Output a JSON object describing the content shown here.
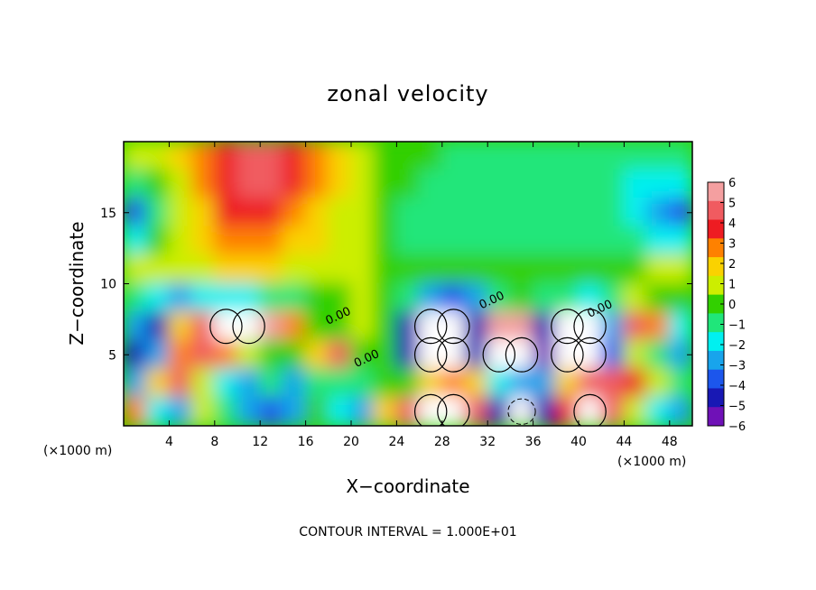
{
  "chart_data": {
    "type": "heatmap",
    "title": "zonal velocity",
    "xlabel": "X−coordinate",
    "ylabel": "Z−coordinate",
    "x_unit_label_left": "(×1000 m)",
    "x_unit_label_right": "(×1000 m)",
    "note": "CONTOUR INTERVAL = 1.000E+01",
    "xlim": [
      0,
      50
    ],
    "ylim": [
      0,
      20
    ],
    "x_ticks": [
      4,
      8,
      12,
      16,
      20,
      24,
      28,
      32,
      36,
      40,
      44,
      48
    ],
    "x_tick_labels": [
      "4",
      "8",
      "12",
      "16",
      "20",
      "24",
      "28",
      "32",
      "36",
      "40",
      "44",
      "48"
    ],
    "y_ticks": [
      5,
      10,
      15
    ],
    "y_tick_labels": [
      "5",
      "10",
      "15"
    ],
    "colorbar": {
      "min": -6,
      "max": 6,
      "tick_labels": [
        "6",
        "5",
        "4",
        "3",
        "2",
        "1",
        "0",
        "−1",
        "−2",
        "−3",
        "−4",
        "−5",
        "−6"
      ],
      "colors": [
        "#f49fa0",
        "#f05b60",
        "#ee1c22",
        "#fe8100",
        "#fad200",
        "#ccee00",
        "#32d000",
        "#20e67a",
        "#00f0f0",
        "#18a4ec",
        "#1c56ec",
        "#1818b4",
        "#6f11b7"
      ]
    },
    "contour_labels": [
      {
        "text": "0.00",
        "x": 19,
        "y": 7.5
      },
      {
        "text": "0.00",
        "x": 21.5,
        "y": 4.5
      },
      {
        "text": "0.00",
        "x": 32.5,
        "y": 8.6
      },
      {
        "text": "0.00",
        "x": 42,
        "y": 8.0
      }
    ],
    "cells_note": "white = above +6 (or below −6); values are zonal velocity in m/s",
    "grid_x": [
      1,
      3,
      5,
      7,
      9,
      11,
      13,
      15,
      17,
      19,
      21,
      23,
      25,
      27,
      29,
      31,
      33,
      35,
      37,
      39,
      41,
      43,
      45,
      47,
      49
    ],
    "grid_y": [
      19,
      17,
      15,
      13,
      11,
      9,
      7,
      5,
      3,
      1
    ],
    "values": [
      [
        1,
        1,
        2,
        3,
        4,
        5,
        5,
        4,
        3,
        2,
        1,
        0,
        0,
        0,
        -1,
        -1,
        -1,
        -1,
        -1,
        -1,
        -1,
        -1,
        -1,
        -1,
        -1
      ],
      [
        -1,
        0,
        1,
        3,
        4,
        5,
        5,
        4,
        3,
        2,
        1,
        0,
        0,
        -1,
        -1,
        -1,
        -1,
        -1,
        -1,
        -1,
        -1,
        -1,
        -2,
        -2,
        -2
      ],
      [
        -4,
        -1,
        1,
        2,
        4,
        4,
        4,
        3,
        2,
        1,
        1,
        0,
        -1,
        -1,
        -1,
        -1,
        -1,
        -1,
        -1,
        -1,
        -1,
        -1,
        -2,
        -3,
        -4
      ],
      [
        -2,
        0,
        1,
        2,
        3,
        3,
        3,
        2,
        2,
        1,
        1,
        0,
        -1,
        -1,
        -1,
        -1,
        -1,
        -1,
        -1,
        -1,
        -1,
        -1,
        -1,
        -2,
        -2
      ],
      [
        1,
        1,
        1,
        1,
        2,
        2,
        2,
        1,
        1,
        1,
        1,
        0,
        0,
        0,
        0,
        0,
        0,
        0,
        0,
        0,
        0,
        0,
        0,
        1,
        1
      ],
      [
        -1,
        -2,
        -3,
        -2,
        -2,
        -2,
        -1,
        -1,
        0,
        0,
        1,
        0,
        -1,
        -3,
        -4,
        -3,
        -1,
        0,
        -1,
        -1,
        -2,
        -1,
        1,
        0,
        0
      ],
      [
        -3,
        -5,
        2,
        5,
        7,
        7,
        6,
        3,
        0,
        0,
        1,
        0,
        -5,
        7,
        7,
        -5,
        6,
        6,
        -5,
        7,
        7,
        -3,
        5,
        3,
        -2
      ],
      [
        -5,
        -3,
        3,
        5,
        3,
        1,
        0,
        0,
        2,
        5,
        0,
        0,
        -5,
        7,
        7,
        -5,
        7,
        7,
        -6,
        7,
        7,
        -4,
        1,
        -1,
        -3
      ],
      [
        -3,
        2,
        5,
        1,
        -2,
        -3,
        -1,
        -3,
        -1,
        -1,
        -1,
        0,
        0,
        2,
        3,
        2,
        -2,
        -3,
        -3,
        2,
        5,
        5,
        4,
        1,
        -1
      ],
      [
        3,
        -2,
        -3,
        1,
        -1,
        -3,
        -4,
        -3,
        0,
        -2,
        -3,
        2,
        5,
        7,
        7,
        5,
        -5,
        -7,
        -5,
        4,
        7,
        5,
        1,
        -2,
        -3
      ]
    ]
  }
}
